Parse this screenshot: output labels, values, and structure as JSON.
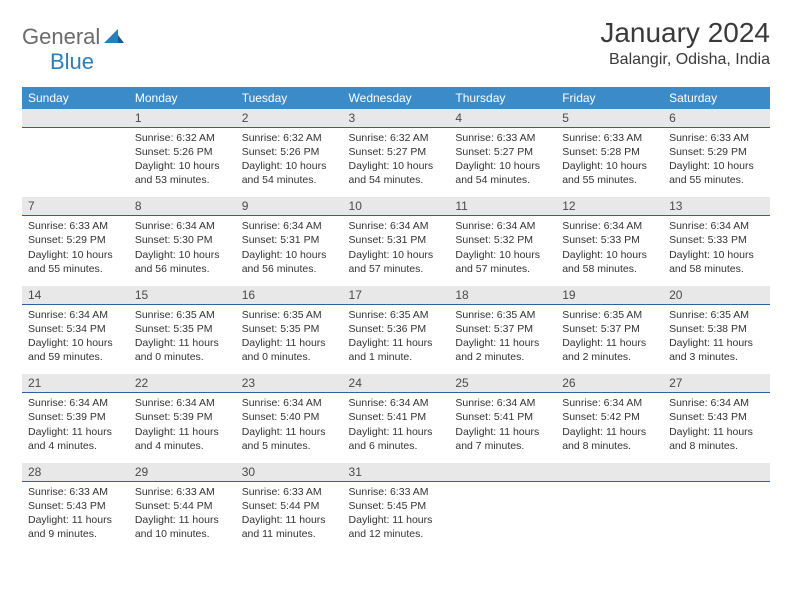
{
  "logo": {
    "text1": "General",
    "text2": "Blue"
  },
  "title": "January 2024",
  "location": "Balangir, Odisha, India",
  "colors": {
    "header_bg": "#3b8bc9",
    "header_text": "#ffffff",
    "daynum_bg": "#e8e8e8",
    "daynum_border": "#2a64a0",
    "body_text": "#333333",
    "logo_gray": "#6b6b6b",
    "logo_blue": "#2a7fba"
  },
  "weekdays": [
    "Sunday",
    "Monday",
    "Tuesday",
    "Wednesday",
    "Thursday",
    "Friday",
    "Saturday"
  ],
  "start_offset": 1,
  "days": [
    {
      "n": 1,
      "sunrise": "6:32 AM",
      "sunset": "5:26 PM",
      "daylight": "10 hours and 53 minutes."
    },
    {
      "n": 2,
      "sunrise": "6:32 AM",
      "sunset": "5:26 PM",
      "daylight": "10 hours and 54 minutes."
    },
    {
      "n": 3,
      "sunrise": "6:32 AM",
      "sunset": "5:27 PM",
      "daylight": "10 hours and 54 minutes."
    },
    {
      "n": 4,
      "sunrise": "6:33 AM",
      "sunset": "5:27 PM",
      "daylight": "10 hours and 54 minutes."
    },
    {
      "n": 5,
      "sunrise": "6:33 AM",
      "sunset": "5:28 PM",
      "daylight": "10 hours and 55 minutes."
    },
    {
      "n": 6,
      "sunrise": "6:33 AM",
      "sunset": "5:29 PM",
      "daylight": "10 hours and 55 minutes."
    },
    {
      "n": 7,
      "sunrise": "6:33 AM",
      "sunset": "5:29 PM",
      "daylight": "10 hours and 55 minutes."
    },
    {
      "n": 8,
      "sunrise": "6:34 AM",
      "sunset": "5:30 PM",
      "daylight": "10 hours and 56 minutes."
    },
    {
      "n": 9,
      "sunrise": "6:34 AM",
      "sunset": "5:31 PM",
      "daylight": "10 hours and 56 minutes."
    },
    {
      "n": 10,
      "sunrise": "6:34 AM",
      "sunset": "5:31 PM",
      "daylight": "10 hours and 57 minutes."
    },
    {
      "n": 11,
      "sunrise": "6:34 AM",
      "sunset": "5:32 PM",
      "daylight": "10 hours and 57 minutes."
    },
    {
      "n": 12,
      "sunrise": "6:34 AM",
      "sunset": "5:33 PM",
      "daylight": "10 hours and 58 minutes."
    },
    {
      "n": 13,
      "sunrise": "6:34 AM",
      "sunset": "5:33 PM",
      "daylight": "10 hours and 58 minutes."
    },
    {
      "n": 14,
      "sunrise": "6:34 AM",
      "sunset": "5:34 PM",
      "daylight": "10 hours and 59 minutes."
    },
    {
      "n": 15,
      "sunrise": "6:35 AM",
      "sunset": "5:35 PM",
      "daylight": "11 hours and 0 minutes."
    },
    {
      "n": 16,
      "sunrise": "6:35 AM",
      "sunset": "5:35 PM",
      "daylight": "11 hours and 0 minutes."
    },
    {
      "n": 17,
      "sunrise": "6:35 AM",
      "sunset": "5:36 PM",
      "daylight": "11 hours and 1 minute."
    },
    {
      "n": 18,
      "sunrise": "6:35 AM",
      "sunset": "5:37 PM",
      "daylight": "11 hours and 2 minutes."
    },
    {
      "n": 19,
      "sunrise": "6:35 AM",
      "sunset": "5:37 PM",
      "daylight": "11 hours and 2 minutes."
    },
    {
      "n": 20,
      "sunrise": "6:35 AM",
      "sunset": "5:38 PM",
      "daylight": "11 hours and 3 minutes."
    },
    {
      "n": 21,
      "sunrise": "6:34 AM",
      "sunset": "5:39 PM",
      "daylight": "11 hours and 4 minutes."
    },
    {
      "n": 22,
      "sunrise": "6:34 AM",
      "sunset": "5:39 PM",
      "daylight": "11 hours and 4 minutes."
    },
    {
      "n": 23,
      "sunrise": "6:34 AM",
      "sunset": "5:40 PM",
      "daylight": "11 hours and 5 minutes."
    },
    {
      "n": 24,
      "sunrise": "6:34 AM",
      "sunset": "5:41 PM",
      "daylight": "11 hours and 6 minutes."
    },
    {
      "n": 25,
      "sunrise": "6:34 AM",
      "sunset": "5:41 PM",
      "daylight": "11 hours and 7 minutes."
    },
    {
      "n": 26,
      "sunrise": "6:34 AM",
      "sunset": "5:42 PM",
      "daylight": "11 hours and 8 minutes."
    },
    {
      "n": 27,
      "sunrise": "6:34 AM",
      "sunset": "5:43 PM",
      "daylight": "11 hours and 8 minutes."
    },
    {
      "n": 28,
      "sunrise": "6:33 AM",
      "sunset": "5:43 PM",
      "daylight": "11 hours and 9 minutes."
    },
    {
      "n": 29,
      "sunrise": "6:33 AM",
      "sunset": "5:44 PM",
      "daylight": "11 hours and 10 minutes."
    },
    {
      "n": 30,
      "sunrise": "6:33 AM",
      "sunset": "5:44 PM",
      "daylight": "11 hours and 11 minutes."
    },
    {
      "n": 31,
      "sunrise": "6:33 AM",
      "sunset": "5:45 PM",
      "daylight": "11 hours and 12 minutes."
    }
  ],
  "labels": {
    "sunrise": "Sunrise:",
    "sunset": "Sunset:",
    "daylight": "Daylight:"
  }
}
